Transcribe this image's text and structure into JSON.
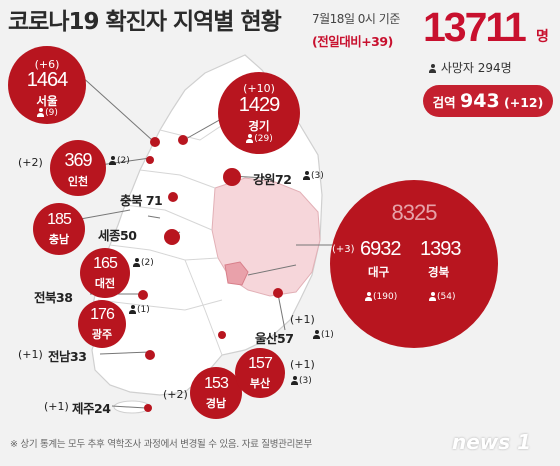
{
  "title": "코로나19 확진자 지역별 현황",
  "date": "7월18일 0시 기준",
  "delta_total": "(전일대비+39)",
  "total": "13711",
  "total_unit": "명",
  "deaths": "사망자 294명",
  "quarantine": {
    "label": "검역",
    "value": "943",
    "delta": "(+12)"
  },
  "daegu_gyeongbuk_total": "8325",
  "regions": {
    "seoul": {
      "delta": "(+6)",
      "value": "1464",
      "name": "서울",
      "deaths": "(9)"
    },
    "gyeonggi": {
      "delta": "(+10)",
      "value": "1429",
      "name": "경기",
      "deaths": "(29)"
    },
    "incheon": {
      "delta": "(+2)",
      "value": "369",
      "name": "인천",
      "deaths": "(2)"
    },
    "chungnam": {
      "value": "185",
      "name": "충남"
    },
    "daejeon": {
      "value": "165",
      "name": "대전",
      "deaths": "(2)"
    },
    "gwangju": {
      "value": "176",
      "name": "광주",
      "deaths": "(1)"
    },
    "gyeongnam": {
      "delta": "(+2)",
      "value": "153",
      "name": "경남"
    },
    "busan": {
      "delta": "(+1)",
      "value": "157",
      "name": "부산",
      "deaths": "(3)"
    },
    "daegu": {
      "delta": "(+3)",
      "value": "6932",
      "name": "대구",
      "deaths": "(190)"
    },
    "gyeongbuk": {
      "value": "1393",
      "name": "경북",
      "deaths": "(54)"
    },
    "gangwon": {
      "label": "강원72",
      "deaths": "(3)"
    },
    "chungbuk": {
      "label": "충북 71"
    },
    "sejong": {
      "label": "세종50"
    },
    "jeonbuk": {
      "label": "전북38"
    },
    "jeonnam": {
      "delta": "(+1)",
      "label": "전남33"
    },
    "ulsan": {
      "delta": "(+1)",
      "label": "울산57",
      "deaths": "(1)"
    },
    "jeju": {
      "delta": "(+1)",
      "label": "제주24"
    }
  },
  "footnote": "※ 상기 통계는 모두 추후 역학조사 과정에서 변경될 수 있음.  자료  질병관리본부",
  "logo": "news 1",
  "colors": {
    "accent": "#c8102e",
    "bubble": "#b8151f",
    "map": "#ffffff",
    "highlight": "#f6d6da"
  }
}
